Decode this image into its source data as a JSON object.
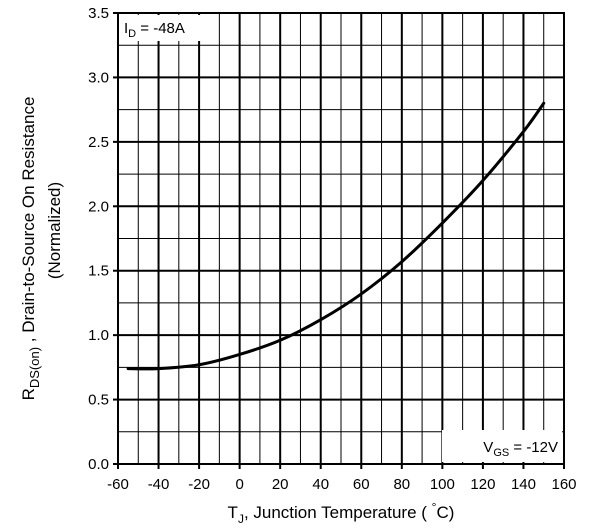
{
  "chart_data": {
    "type": "line",
    "x_axis": {
      "label_main": "T",
      "label_sub": "J",
      "label_rest": ", Junction Temperature ( ",
      "label_deg": "°",
      "label_unit": "C)",
      "range": [
        -60,
        160
      ],
      "major_ticks": [
        -60,
        -40,
        -20,
        0,
        20,
        40,
        60,
        80,
        100,
        120,
        140,
        160
      ],
      "tick_labels": [
        "-60",
        "-40",
        "-20",
        "0",
        "20",
        "40",
        "60",
        "80",
        "100",
        "120",
        "140",
        "160"
      ],
      "minor_step": 10
    },
    "y_axis": {
      "label_r": "R",
      "label_sub": "DS(on)",
      "label_rest": " , Drain-to-Source On Resistance",
      "label_line2": "(Normalized)",
      "range": [
        0,
        3.5
      ],
      "major_ticks": [
        0,
        0.5,
        1.0,
        1.5,
        2.0,
        2.5,
        3.0,
        3.5
      ],
      "tick_labels": [
        "0.0",
        "0.5",
        "1.0",
        "1.5",
        "2.0",
        "2.5",
        "3.0",
        "3.5"
      ],
      "minor_step": 0.25
    },
    "grid": true,
    "annotations": {
      "id_main": "I",
      "id_sub": "D",
      "id_value": " = -48A",
      "vgs_main": "V",
      "vgs_sub": "GS",
      "vgs_value": " = -12V"
    },
    "series": [
      {
        "x": [
          -55,
          -40,
          -20,
          0,
          20,
          40,
          60,
          80,
          100,
          120,
          140,
          150
        ],
        "y": [
          0.74,
          0.74,
          0.77,
          0.85,
          0.96,
          1.12,
          1.32,
          1.57,
          1.87,
          2.2,
          2.58,
          2.8
        ]
      }
    ]
  }
}
